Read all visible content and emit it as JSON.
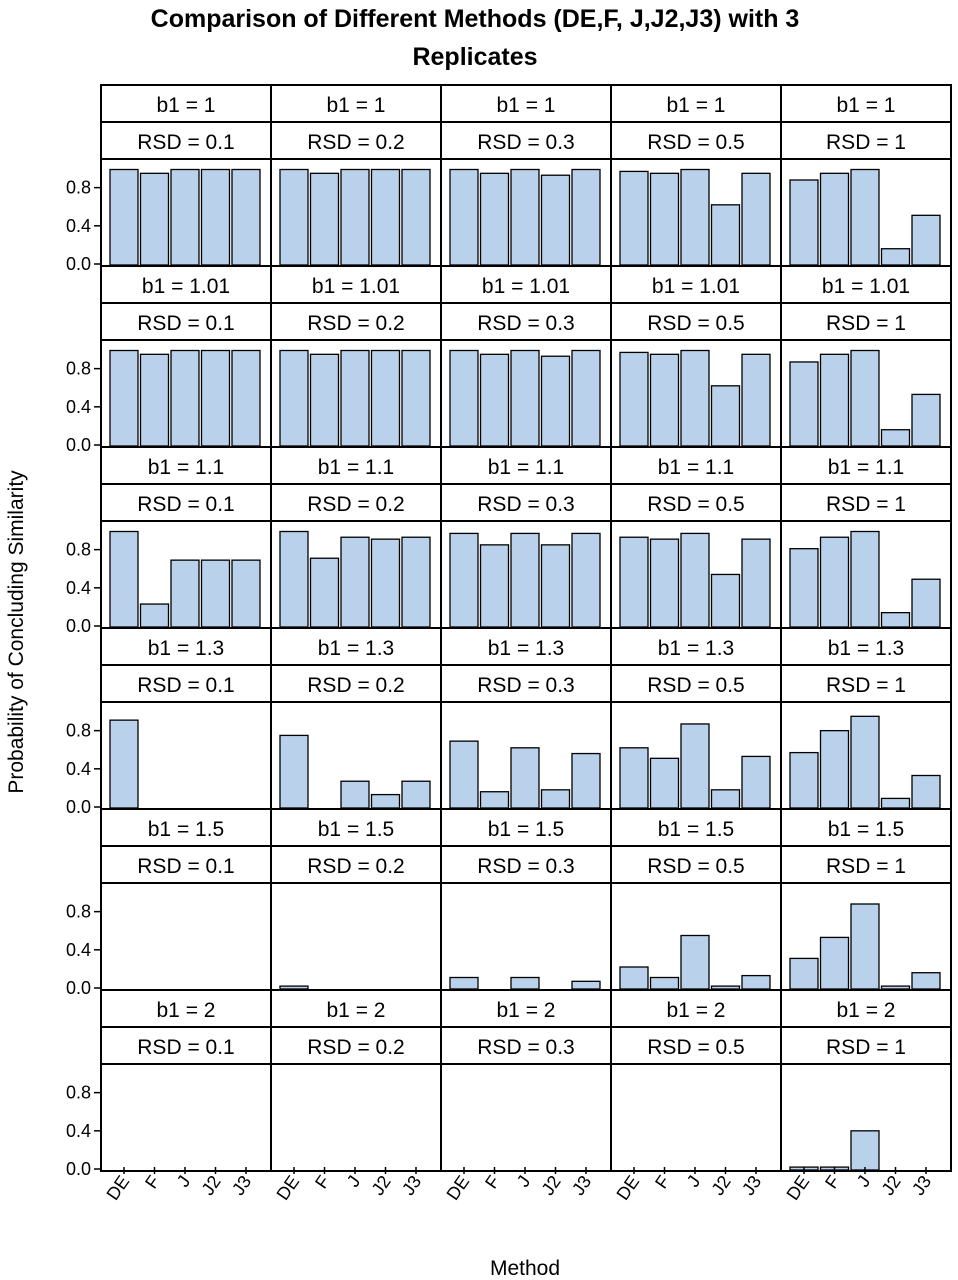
{
  "chart_data": {
    "type": "bar",
    "title_lines": [
      "Comparison of Different Methods (DE,F, J,J2,J3) with 3",
      "Replicates"
    ],
    "xlabel": "Method",
    "ylabel": "Probability of Concluding Similarity",
    "categories": [
      "DE",
      "F",
      "J",
      "J2",
      "J3"
    ],
    "yticks": [
      0.0,
      0.4,
      0.8
    ],
    "ytick_labels": [
      "0.0",
      "0.4",
      "0.8"
    ],
    "ylim": [
      0,
      1.1
    ],
    "bar_color": "#b9d1ea",
    "strip_color": "#ffffff",
    "panel_rows": [
      {
        "b1_label": "b1 = 1",
        "panels": [
          {
            "rsd_label": "RSD = 0.1",
            "values": [
              0.99,
              0.95,
              0.99,
              0.99,
              0.99
            ]
          },
          {
            "rsd_label": "RSD = 0.2",
            "values": [
              0.99,
              0.95,
              0.99,
              0.99,
              0.99
            ]
          },
          {
            "rsd_label": "RSD = 0.3",
            "values": [
              0.99,
              0.95,
              0.99,
              0.93,
              0.99
            ]
          },
          {
            "rsd_label": "RSD = 0.5",
            "values": [
              0.97,
              0.95,
              0.99,
              0.62,
              0.95
            ]
          },
          {
            "rsd_label": "RSD = 1",
            "values": [
              0.88,
              0.95,
              0.99,
              0.16,
              0.51
            ]
          }
        ]
      },
      {
        "b1_label": "b1 = 1.01",
        "panels": [
          {
            "rsd_label": "RSD = 0.1",
            "values": [
              0.99,
              0.95,
              0.99,
              0.99,
              0.99
            ]
          },
          {
            "rsd_label": "RSD = 0.2",
            "values": [
              0.99,
              0.95,
              0.99,
              0.99,
              0.99
            ]
          },
          {
            "rsd_label": "RSD = 0.3",
            "values": [
              0.99,
              0.95,
              0.99,
              0.93,
              0.99
            ]
          },
          {
            "rsd_label": "RSD = 0.5",
            "values": [
              0.97,
              0.95,
              0.99,
              0.62,
              0.95
            ]
          },
          {
            "rsd_label": "RSD = 1",
            "values": [
              0.87,
              0.95,
              0.99,
              0.16,
              0.53
            ]
          }
        ]
      },
      {
        "b1_label": "b1 = 1.1",
        "panels": [
          {
            "rsd_label": "RSD = 0.1",
            "values": [
              0.99,
              0.23,
              0.69,
              0.69,
              0.69
            ]
          },
          {
            "rsd_label": "RSD = 0.2",
            "values": [
              0.99,
              0.71,
              0.93,
              0.91,
              0.93
            ]
          },
          {
            "rsd_label": "RSD = 0.3",
            "values": [
              0.97,
              0.85,
              0.97,
              0.85,
              0.97
            ]
          },
          {
            "rsd_label": "RSD = 0.5",
            "values": [
              0.93,
              0.91,
              0.97,
              0.54,
              0.91
            ]
          },
          {
            "rsd_label": "RSD = 1",
            "values": [
              0.81,
              0.93,
              0.99,
              0.14,
              0.49
            ]
          }
        ]
      },
      {
        "b1_label": "b1 = 1.3",
        "panels": [
          {
            "rsd_label": "RSD = 0.1",
            "values": [
              0.91,
              0.0,
              0.0,
              0.0,
              0.0
            ]
          },
          {
            "rsd_label": "RSD = 0.2",
            "values": [
              0.75,
              0.0,
              0.27,
              0.13,
              0.27
            ]
          },
          {
            "rsd_label": "RSD = 0.3",
            "values": [
              0.69,
              0.16,
              0.62,
              0.18,
              0.56
            ]
          },
          {
            "rsd_label": "RSD = 0.5",
            "values": [
              0.62,
              0.51,
              0.87,
              0.18,
              0.53
            ]
          },
          {
            "rsd_label": "RSD = 1",
            "values": [
              0.57,
              0.8,
              0.95,
              0.09,
              0.33
            ]
          }
        ]
      },
      {
        "b1_label": "b1 = 1.5",
        "panels": [
          {
            "rsd_label": "RSD = 0.1",
            "values": [
              0.0,
              0.0,
              0.0,
              0.0,
              0.0
            ]
          },
          {
            "rsd_label": "RSD = 0.2",
            "values": [
              0.02,
              0.0,
              0.0,
              0.0,
              0.0
            ]
          },
          {
            "rsd_label": "RSD = 0.3",
            "values": [
              0.11,
              0.0,
              0.11,
              0.0,
              0.07
            ]
          },
          {
            "rsd_label": "RSD = 0.5",
            "values": [
              0.22,
              0.11,
              0.55,
              0.02,
              0.13
            ]
          },
          {
            "rsd_label": "RSD = 1",
            "values": [
              0.31,
              0.53,
              0.88,
              0.02,
              0.16
            ]
          }
        ]
      },
      {
        "b1_label": "b1 = 2",
        "panels": [
          {
            "rsd_label": "RSD = 0.1",
            "values": [
              0.0,
              0.0,
              0.0,
              0.0,
              0.0
            ]
          },
          {
            "rsd_label": "RSD = 0.2",
            "values": [
              0.0,
              0.0,
              0.0,
              0.0,
              0.0
            ]
          },
          {
            "rsd_label": "RSD = 0.3",
            "values": [
              0.0,
              0.0,
              0.0,
              0.0,
              0.0
            ]
          },
          {
            "rsd_label": "RSD = 0.5",
            "values": [
              0.0,
              0.0,
              0.0,
              0.0,
              0.0
            ]
          },
          {
            "rsd_label": "RSD = 1",
            "values": [
              0.02,
              0.02,
              0.4,
              0.0,
              0.0
            ]
          }
        ]
      }
    ]
  }
}
